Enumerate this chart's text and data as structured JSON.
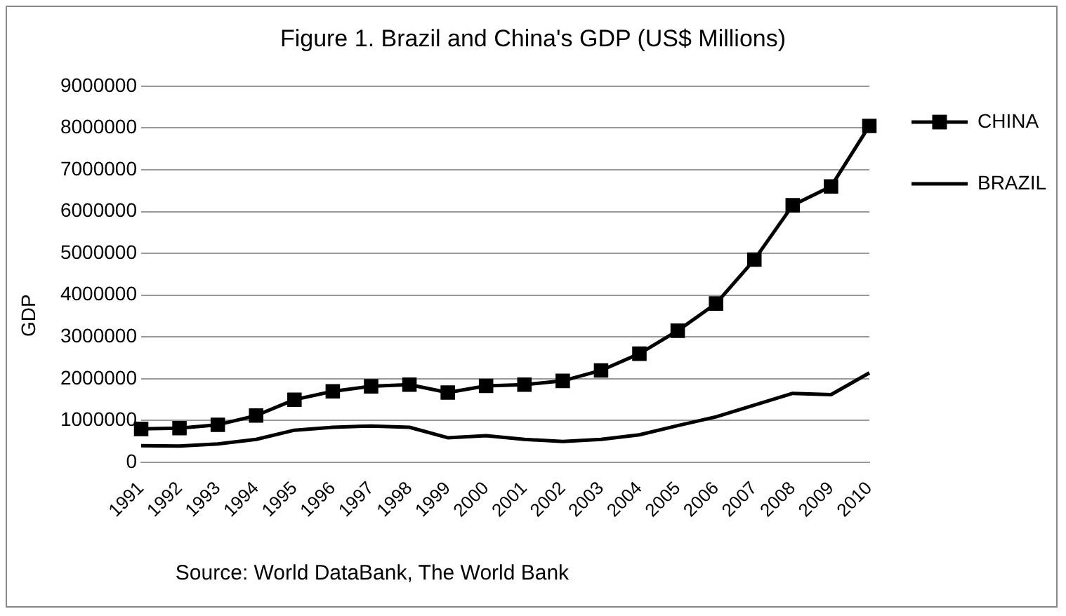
{
  "chart_data": {
    "type": "line",
    "title": "Figure 1. Brazil and China's GDP (US$ Millions)",
    "ylabel": "GDP",
    "annotations": [
      "Source: World DataBank, The World Bank"
    ],
    "categories": [
      "1991",
      "1992",
      "1993",
      "1994",
      "1995",
      "1996",
      "1997",
      "1998",
      "1999",
      "2000",
      "2001",
      "2002",
      "2003",
      "2004",
      "2005",
      "2006",
      "2007",
      "2008",
      "2009",
      "2010"
    ],
    "series": [
      {
        "name": "CHINA",
        "color": "#000000",
        "marker": "square",
        "values": [
          800000,
          820000,
          900000,
          1120000,
          1500000,
          1700000,
          1820000,
          1860000,
          1670000,
          1830000,
          1860000,
          1950000,
          2200000,
          2600000,
          3150000,
          3800000,
          4850000,
          6150000,
          6600000,
          8050000
        ]
      },
      {
        "name": "BRAZIL",
        "color": "#000000",
        "marker": "none",
        "values": [
          400000,
          390000,
          440000,
          550000,
          770000,
          840000,
          870000,
          840000,
          590000,
          640000,
          550000,
          500000,
          550000,
          660000,
          880000,
          1090000,
          1370000,
          1650000,
          1620000,
          2140000
        ]
      }
    ],
    "ylim": [
      0,
      9000000
    ],
    "yticks": [
      0,
      1000000,
      2000000,
      3000000,
      4000000,
      5000000,
      6000000,
      7000000,
      8000000,
      9000000
    ],
    "grid": "y",
    "legend": "right"
  }
}
